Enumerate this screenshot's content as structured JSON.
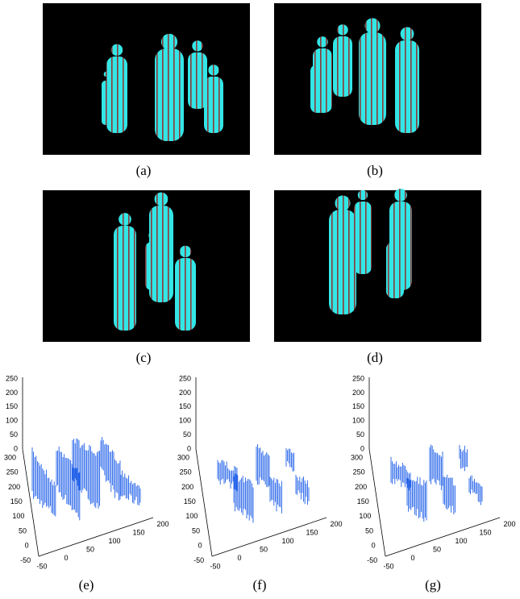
{
  "panels": [
    {
      "label": "(a)"
    },
    {
      "label": "(b)"
    },
    {
      "label": "(c)"
    },
    {
      "label": "(d)"
    }
  ],
  "plots": [
    {
      "label": "(e)",
      "z_ticks": [
        250,
        200,
        150,
        100,
        50,
        0
      ],
      "y_ticks": [
        300,
        250,
        200,
        150,
        100,
        50,
        0,
        -50
      ],
      "x_ticks": [
        -50,
        0,
        50,
        100,
        150,
        200
      ]
    },
    {
      "label": "(f)",
      "z_ticks": [
        250,
        200,
        150,
        100,
        50,
        0
      ],
      "y_ticks": [
        300,
        250,
        200,
        150,
        100,
        50,
        0,
        -50
      ],
      "x_ticks": [
        -50,
        0,
        50,
        100,
        150,
        200
      ]
    },
    {
      "label": "(g)",
      "z_ticks": [
        250,
        200,
        150,
        100,
        50,
        0
      ],
      "y_ticks": [
        300,
        250,
        200,
        150,
        100,
        50,
        0,
        -50
      ],
      "x_ticks": [
        -50,
        0,
        50,
        100,
        150,
        200
      ]
    }
  ]
}
